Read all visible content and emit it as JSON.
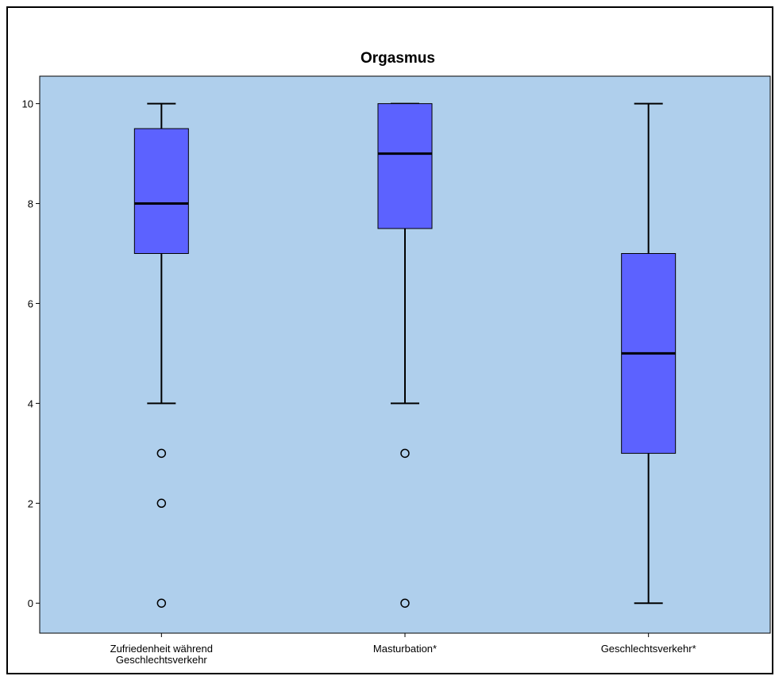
{
  "chart_data": {
    "type": "boxplot",
    "title": "Orgasmus",
    "xlabel": "",
    "ylabel": "",
    "ylim": [
      -0.6,
      10.55
    ],
    "yticks": [
      0,
      2,
      4,
      6,
      8,
      10
    ],
    "grid": false,
    "legend": "none",
    "colors": {
      "plot_background": "#afcfec",
      "box_fill": "#5c62ff",
      "outline": "#000000"
    },
    "categories": [
      [
        "Zufriedenheit während",
        "Geschlechtsverkehr"
      ],
      [
        "Masturbation*"
      ],
      [
        "Geschlechtsverkehr*"
      ]
    ],
    "boxes": [
      {
        "whisker_low": 4,
        "q1": 7,
        "median": 8,
        "q3": 9.5,
        "whisker_high": 10,
        "outliers": [
          3,
          2,
          0
        ]
      },
      {
        "whisker_low": 4,
        "q1": 7.5,
        "median": 9,
        "q3": 10,
        "whisker_high": 10,
        "outliers": [
          3,
          0
        ]
      },
      {
        "whisker_low": 0,
        "q1": 3,
        "median": 5,
        "q3": 7,
        "whisker_high": 10,
        "outliers": []
      }
    ]
  }
}
